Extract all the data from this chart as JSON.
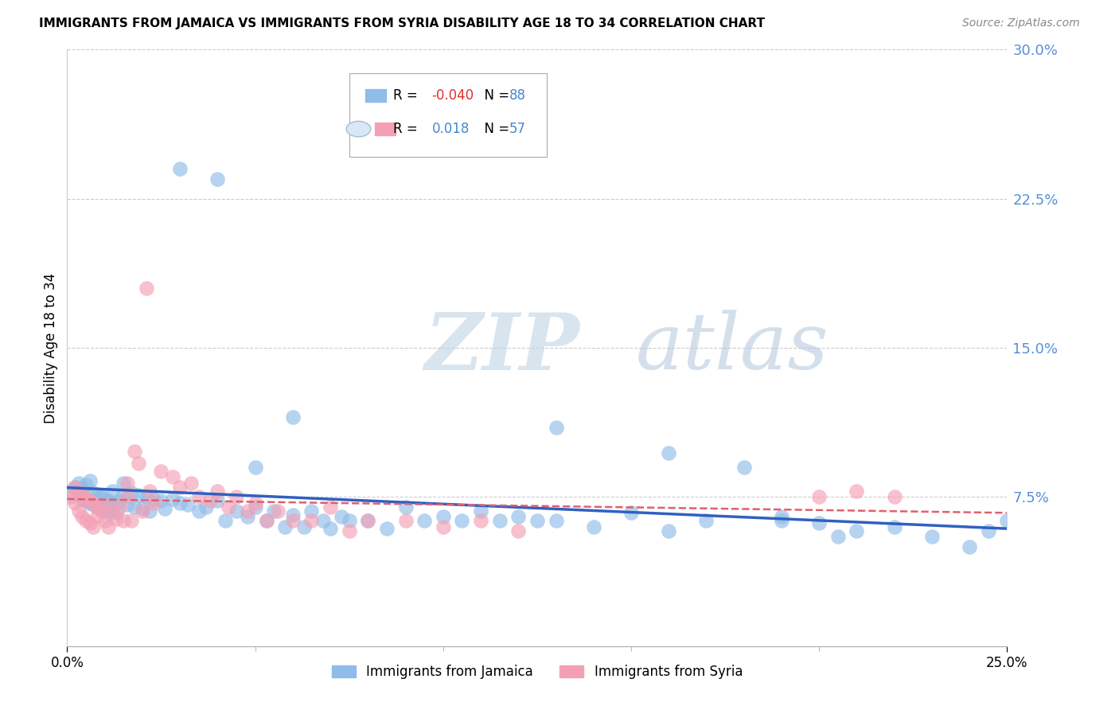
{
  "title": "IMMIGRANTS FROM JAMAICA VS IMMIGRANTS FROM SYRIA DISABILITY AGE 18 TO 34 CORRELATION CHART",
  "source": "Source: ZipAtlas.com",
  "ylabel": "Disability Age 18 to 34",
  "xlim": [
    0.0,
    0.25
  ],
  "ylim": [
    0.0,
    0.3
  ],
  "right_ytick_values": [
    0.075,
    0.15,
    0.225,
    0.3
  ],
  "right_ytick_labels": [
    "7.5%",
    "15.0%",
    "22.5%",
    "30.0%"
  ],
  "xtick_values": [
    0.0,
    0.25
  ],
  "xtick_labels": [
    "0.0%",
    "25.0%"
  ],
  "jamaica_color": "#90bce8",
  "syria_color": "#f4a0b4",
  "trendline_jamaica_color": "#3060c0",
  "trendline_syria_color": "#e06070",
  "background_color": "#ffffff",
  "watermark_zip_color": "#c8d8e8",
  "watermark_atlas_color": "#b8ccd8",
  "legend_jamaica_R": "-0.040",
  "legend_jamaica_N": "88",
  "legend_syria_R": "0.018",
  "legend_syria_N": "57",
  "jamaica_x": [
    0.001,
    0.002,
    0.003,
    0.003,
    0.004,
    0.004,
    0.005,
    0.005,
    0.006,
    0.006,
    0.007,
    0.007,
    0.008,
    0.008,
    0.009,
    0.009,
    0.01,
    0.01,
    0.011,
    0.011,
    0.012,
    0.012,
    0.013,
    0.014,
    0.015,
    0.015,
    0.016,
    0.017,
    0.018,
    0.019,
    0.02,
    0.021,
    0.022,
    0.023,
    0.025,
    0.026,
    0.028,
    0.03,
    0.032,
    0.035,
    0.037,
    0.04,
    0.042,
    0.045,
    0.048,
    0.05,
    0.053,
    0.055,
    0.058,
    0.06,
    0.063,
    0.065,
    0.068,
    0.07,
    0.073,
    0.075,
    0.08,
    0.085,
    0.09,
    0.095,
    0.1,
    0.105,
    0.11,
    0.115,
    0.12,
    0.125,
    0.13,
    0.14,
    0.15,
    0.16,
    0.17,
    0.18,
    0.19,
    0.2,
    0.03,
    0.04,
    0.05,
    0.06,
    0.13,
    0.16,
    0.19,
    0.205,
    0.21,
    0.22,
    0.23,
    0.24,
    0.245,
    0.25
  ],
  "jamaica_y": [
    0.078,
    0.08,
    0.076,
    0.082,
    0.074,
    0.079,
    0.073,
    0.081,
    0.072,
    0.083,
    0.071,
    0.077,
    0.07,
    0.076,
    0.069,
    0.075,
    0.068,
    0.074,
    0.067,
    0.073,
    0.072,
    0.078,
    0.067,
    0.073,
    0.076,
    0.082,
    0.071,
    0.077,
    0.07,
    0.076,
    0.069,
    0.075,
    0.068,
    0.074,
    0.073,
    0.069,
    0.074,
    0.072,
    0.071,
    0.068,
    0.07,
    0.073,
    0.063,
    0.068,
    0.065,
    0.07,
    0.063,
    0.068,
    0.06,
    0.066,
    0.06,
    0.068,
    0.063,
    0.059,
    0.065,
    0.063,
    0.063,
    0.059,
    0.07,
    0.063,
    0.065,
    0.063,
    0.068,
    0.063,
    0.065,
    0.063,
    0.063,
    0.06,
    0.067,
    0.058,
    0.063,
    0.09,
    0.063,
    0.062,
    0.24,
    0.235,
    0.09,
    0.115,
    0.11,
    0.097,
    0.065,
    0.055,
    0.058,
    0.06,
    0.055,
    0.05,
    0.058,
    0.063
  ],
  "syria_x": [
    0.001,
    0.002,
    0.002,
    0.003,
    0.003,
    0.004,
    0.004,
    0.005,
    0.005,
    0.006,
    0.006,
    0.007,
    0.007,
    0.008,
    0.008,
    0.009,
    0.01,
    0.01,
    0.011,
    0.012,
    0.013,
    0.014,
    0.015,
    0.016,
    0.016,
    0.017,
    0.018,
    0.019,
    0.02,
    0.021,
    0.022,
    0.023,
    0.025,
    0.028,
    0.03,
    0.033,
    0.035,
    0.038,
    0.04,
    0.043,
    0.045,
    0.048,
    0.05,
    0.053,
    0.056,
    0.06,
    0.065,
    0.07,
    0.075,
    0.08,
    0.09,
    0.1,
    0.11,
    0.12,
    0.2,
    0.21,
    0.22
  ],
  "syria_y": [
    0.075,
    0.072,
    0.08,
    0.068,
    0.077,
    0.065,
    0.076,
    0.063,
    0.074,
    0.062,
    0.073,
    0.06,
    0.072,
    0.065,
    0.07,
    0.068,
    0.063,
    0.071,
    0.06,
    0.068,
    0.064,
    0.07,
    0.063,
    0.082,
    0.075,
    0.063,
    0.098,
    0.092,
    0.068,
    0.18,
    0.078,
    0.072,
    0.088,
    0.085,
    0.08,
    0.082,
    0.075,
    0.073,
    0.078,
    0.07,
    0.075,
    0.068,
    0.072,
    0.063,
    0.068,
    0.063,
    0.063,
    0.07,
    0.058,
    0.063,
    0.063,
    0.06,
    0.063,
    0.058,
    0.075,
    0.078,
    0.075
  ]
}
